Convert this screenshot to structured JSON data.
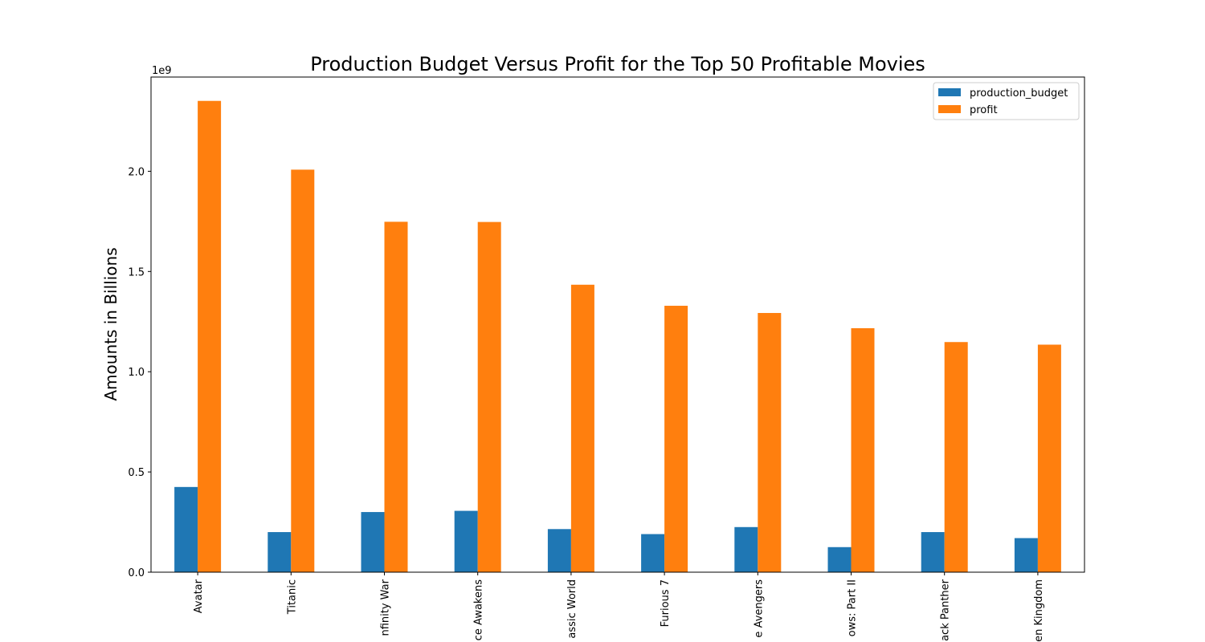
{
  "chart_data": {
    "type": "bar",
    "title": "Production Budget Versus Profit for the Top 50 Profitable Movies",
    "xlabel": "",
    "ylabel": "Amounts in Billions",
    "y_offset_label": "1e9",
    "ylim": [
      0,
      2.47
    ],
    "yticks": [
      0.0,
      0.5,
      1.0,
      1.5,
      2.0
    ],
    "ytick_labels": [
      "0.0",
      "0.5",
      "1.0",
      "1.5",
      "2.0"
    ],
    "legend_position": "upper right",
    "grid": false,
    "categories": [
      "Avatar",
      "Titanic",
      "nfinity War",
      "ce Awakens",
      "assic World",
      "Furious 7",
      "e Avengers",
      "ows: Part II",
      "ack Panther",
      "en Kingdom"
    ],
    "series": [
      {
        "name": "production_budget",
        "color": "#1f77b4",
        "values": [
          0.425,
          0.2,
          0.3,
          0.306,
          0.215,
          0.19,
          0.225,
          0.125,
          0.2,
          0.17
        ]
      },
      {
        "name": "profit",
        "color": "#ff7f0e",
        "values": [
          2.351,
          2.008,
          1.748,
          1.747,
          1.434,
          1.329,
          1.293,
          1.217,
          1.148,
          1.135
        ]
      }
    ]
  }
}
